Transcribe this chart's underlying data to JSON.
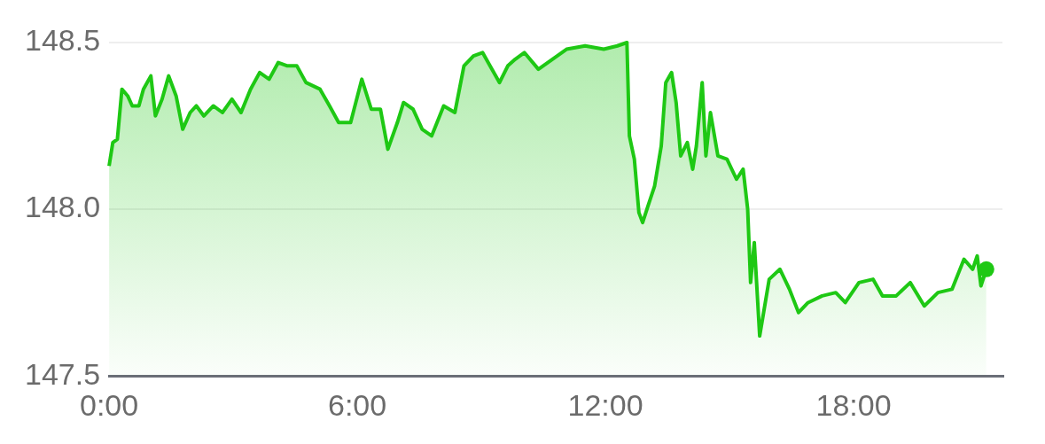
{
  "chart_data": {
    "type": "area",
    "color": "#1ec814",
    "grid": "y",
    "xlim": [
      0,
      21.6
    ],
    "ylim": [
      147.5,
      148.5
    ],
    "xticks": [
      {
        "value": 0,
        "label": "0:00"
      },
      {
        "value": 6,
        "label": "6:00"
      },
      {
        "value": 12,
        "label": "12:00"
      },
      {
        "value": 18,
        "label": "18:00"
      }
    ],
    "yticks": [
      {
        "value": 147.5,
        "label": "147.5"
      },
      {
        "value": 148,
        "label": "148.0"
      },
      {
        "value": 148.5,
        "label": "148.5"
      }
    ],
    "x": [
      0,
      0.09,
      0.2,
      0.31,
      0.45,
      0.56,
      0.72,
      0.83,
      1.01,
      1.12,
      1.28,
      1.44,
      1.62,
      1.78,
      1.96,
      2.11,
      2.29,
      2.52,
      2.74,
      2.97,
      3.19,
      3.42,
      3.64,
      3.87,
      4.09,
      4.31,
      4.54,
      4.76,
      5.1,
      5.33,
      5.55,
      5.84,
      6.11,
      6.34,
      6.56,
      6.74,
      6.97,
      7.12,
      7.35,
      7.57,
      7.8,
      8.09,
      8.36,
      8.58,
      8.81,
      9.03,
      9.21,
      9.44,
      9.64,
      9.82,
      10.04,
      10.38,
      10.72,
      11.06,
      11.51,
      11.96,
      12.29,
      12.52,
      12.58,
      12.7,
      12.81,
      12.9,
      13.03,
      13.19,
      13.35,
      13.46,
      13.6,
      13.71,
      13.82,
      13.98,
      14.11,
      14.2,
      14.34,
      14.43,
      14.54,
      14.72,
      14.94,
      15.17,
      15.33,
      15.44,
      15.51,
      15.6,
      15.73,
      15.96,
      16.22,
      16.45,
      16.67,
      16.9,
      17.24,
      17.57,
      17.8,
      18.13,
      18.47,
      18.7,
      19.03,
      19.37,
      19.71,
      20.04,
      20.38,
      20.67,
      20.88,
      20.99,
      21.08,
      21.21
    ],
    "values": [
      148.13,
      148.2,
      148.21,
      148.36,
      148.34,
      148.31,
      148.31,
      148.36,
      148.4,
      148.28,
      148.33,
      148.4,
      148.34,
      148.24,
      148.29,
      148.31,
      148.28,
      148.31,
      148.29,
      148.33,
      148.29,
      148.36,
      148.41,
      148.39,
      148.44,
      148.43,
      148.43,
      148.38,
      148.36,
      148.31,
      148.26,
      148.26,
      148.39,
      148.3,
      148.3,
      148.18,
      148.26,
      148.32,
      148.3,
      148.24,
      148.22,
      148.31,
      148.29,
      148.43,
      148.46,
      148.47,
      148.43,
      148.38,
      148.43,
      148.45,
      148.47,
      148.42,
      148.45,
      148.48,
      148.49,
      148.48,
      148.49,
      148.5,
      148.22,
      148.15,
      147.99,
      147.96,
      148.01,
      148.07,
      148.19,
      148.38,
      148.41,
      148.32,
      148.16,
      148.2,
      148.12,
      148.19,
      148.38,
      148.16,
      148.29,
      148.16,
      148.15,
      148.09,
      148.12,
      148,
      147.78,
      147.9,
      147.62,
      147.79,
      147.82,
      147.76,
      147.69,
      147.72,
      147.74,
      147.75,
      147.72,
      147.78,
      147.79,
      147.74,
      147.74,
      147.78,
      147.71,
      147.75,
      147.76,
      147.85,
      147.82,
      147.86,
      147.77,
      147.82
    ]
  }
}
